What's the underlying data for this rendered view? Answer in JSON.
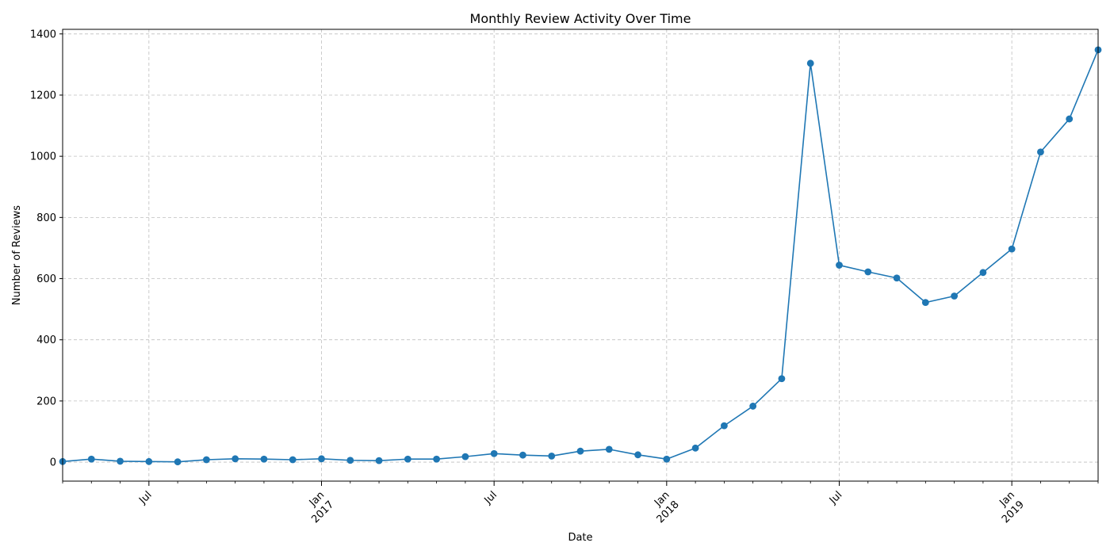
{
  "chart_data": {
    "type": "line",
    "title": "Monthly Review Activity Over Time",
    "xlabel": "Date",
    "ylabel": "Number of Reviews",
    "xlim": [
      "2016-04",
      "2019-04"
    ],
    "ylim": [
      -62,
      1415
    ],
    "grid": true,
    "line_color": "#1f77b4",
    "grid_color": "#b0b0b0",
    "x_major_ticks": [
      {
        "date": "2016-07",
        "label": "Jul",
        "label2": ""
      },
      {
        "date": "2017-01",
        "label": "Jan",
        "label2": "2017"
      },
      {
        "date": "2017-07",
        "label": "Jul",
        "label2": ""
      },
      {
        "date": "2018-01",
        "label": "Jan",
        "label2": "2018"
      },
      {
        "date": "2018-07",
        "label": "Jul",
        "label2": ""
      },
      {
        "date": "2019-01",
        "label": "Jan",
        "label2": "2019"
      }
    ],
    "y_ticks": [
      0,
      200,
      400,
      600,
      800,
      1000,
      1200,
      1400
    ],
    "x": [
      "2016-04",
      "2016-05",
      "2016-06",
      "2016-07",
      "2016-08",
      "2016-09",
      "2016-10",
      "2016-11",
      "2016-12",
      "2017-01",
      "2017-02",
      "2017-03",
      "2017-04",
      "2017-05",
      "2017-06",
      "2017-07",
      "2017-08",
      "2017-09",
      "2017-10",
      "2017-11",
      "2017-12",
      "2018-01",
      "2018-02",
      "2018-03",
      "2018-04",
      "2018-05",
      "2018-06",
      "2018-07",
      "2018-08",
      "2018-09",
      "2018-10",
      "2018-11",
      "2018-12",
      "2019-01",
      "2019-02",
      "2019-03",
      "2019-04"
    ],
    "values": [
      2,
      10,
      3,
      2,
      1,
      8,
      11,
      10,
      8,
      11,
      6,
      5,
      10,
      10,
      18,
      28,
      23,
      20,
      36,
      42,
      24,
      10,
      46,
      119,
      183,
      273,
      1304,
      644,
      622,
      602,
      522,
      543,
      620,
      697,
      1014,
      1122,
      1348
    ]
  }
}
